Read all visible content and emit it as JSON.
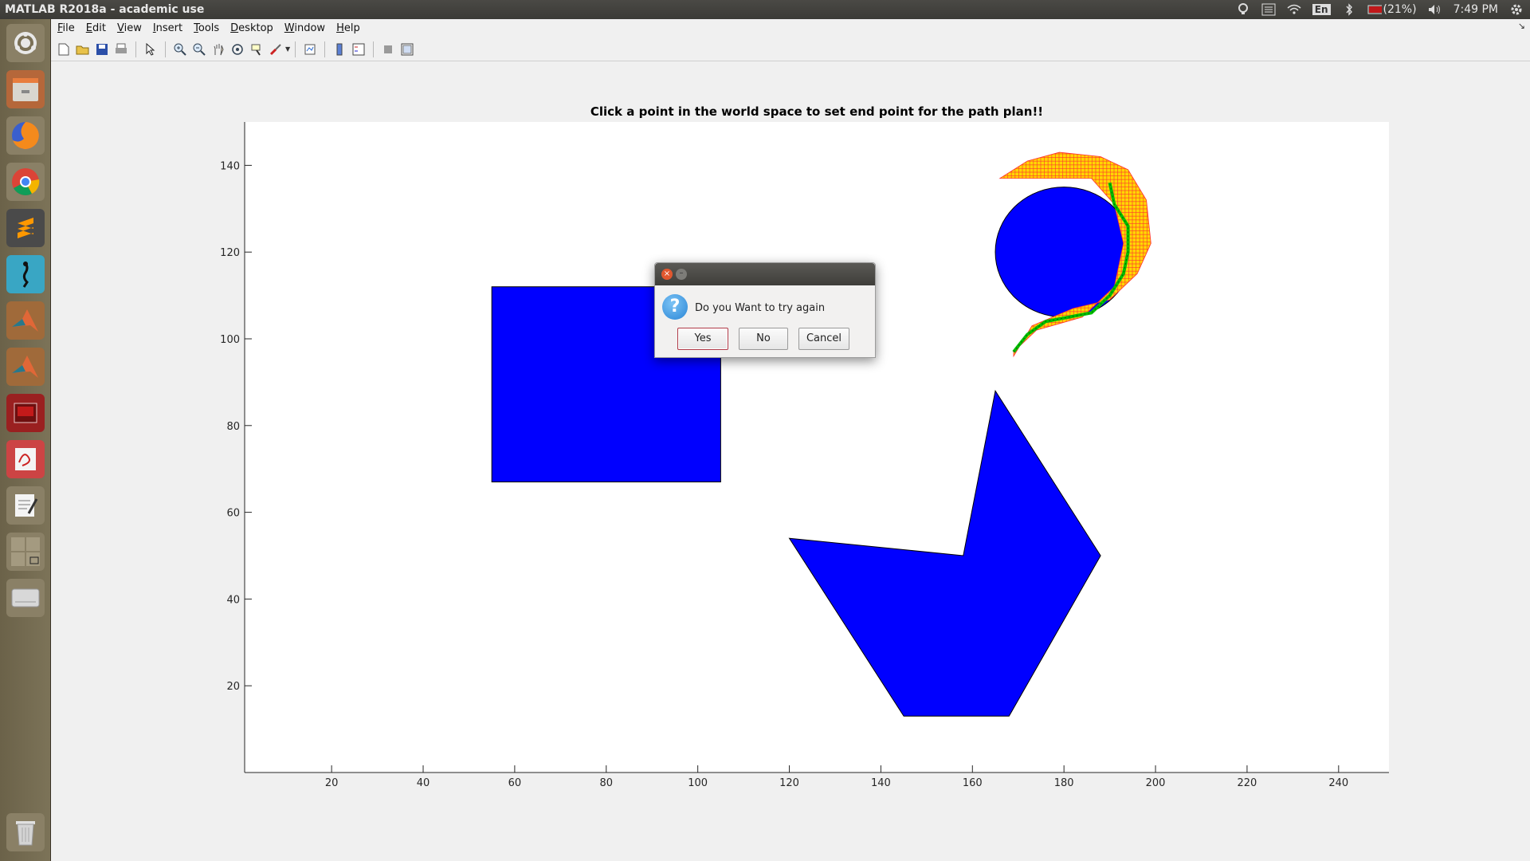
{
  "window": {
    "title": "MATLAB R2018a - academic use"
  },
  "tray": {
    "language": "En",
    "battery": "(21%)",
    "time": "7:49 PM"
  },
  "menu": [
    "File",
    "Edit",
    "View",
    "Insert",
    "Tools",
    "Desktop",
    "Window",
    "Help"
  ],
  "toolbar_icons": [
    "new-figure-icon",
    "open-icon",
    "save-icon",
    "print-icon",
    "edit-plot-icon",
    "zoom-in-icon",
    "zoom-out-icon",
    "pan-icon",
    "rotate-3d-icon",
    "data-cursor-icon",
    "brush-icon",
    "link-plot-icon",
    "insert-colorbar-icon",
    "insert-legend-icon",
    "hide-plot-tools-icon",
    "show-plot-tools-icon"
  ],
  "launcher_icons": [
    "dash-icon",
    "files-icon",
    "firefox-icon",
    "chrome-icon",
    "sublime-text-icon",
    "terminal-gecko-icon",
    "matlab-icon",
    "matlab-icon-2",
    "app-red-icon",
    "document-viewer-icon",
    "text-editor-icon",
    "workspace-switcher-icon",
    "drive-icon",
    "trash-icon"
  ],
  "colors": {
    "obstacle": "#0000ff",
    "path": "#00c000",
    "explored": "#ffd700",
    "explored_edge": "#ff3030"
  },
  "chart_data": {
    "type": "scatter",
    "title": "Click a point in the world space to set end point for the path plan!!",
    "xlabel": "",
    "ylabel": "",
    "xlim": [
      1,
      251
    ],
    "ylim": [
      0,
      150
    ],
    "xticks": [
      20,
      40,
      60,
      80,
      100,
      120,
      140,
      160,
      180,
      200,
      220,
      240
    ],
    "yticks": [
      20,
      40,
      60,
      80,
      100,
      120,
      140
    ],
    "obstacles": [
      {
        "shape": "rectangle",
        "x": [
          55,
          105
        ],
        "y": [
          67,
          112
        ]
      },
      {
        "shape": "circle",
        "center": [
          180,
          120
        ],
        "radius": 15
      },
      {
        "shape": "polygon",
        "points": [
          [
            165,
            88
          ],
          [
            188,
            50
          ],
          [
            168,
            13
          ],
          [
            145,
            13
          ],
          [
            120,
            54
          ],
          [
            158,
            50
          ]
        ]
      }
    ],
    "path": [
      [
        169,
        97
      ],
      [
        172,
        101
      ],
      [
        176,
        104
      ],
      [
        181,
        105
      ],
      [
        186,
        106
      ],
      [
        190,
        110
      ],
      [
        193,
        115
      ],
      [
        194,
        120
      ],
      [
        194,
        126
      ],
      [
        191,
        131
      ],
      [
        190,
        136
      ]
    ],
    "explored_region": [
      [
        169,
        96
      ],
      [
        173,
        103
      ],
      [
        182,
        107
      ],
      [
        190,
        109
      ],
      [
        196,
        115
      ],
      [
        199,
        122
      ],
      [
        198,
        132
      ],
      [
        194,
        139
      ],
      [
        188,
        142
      ],
      [
        179,
        143
      ],
      [
        172,
        141
      ],
      [
        166,
        137
      ],
      [
        175,
        137
      ],
      [
        186,
        137
      ],
      [
        191,
        131
      ],
      [
        193,
        122
      ],
      [
        191,
        112
      ],
      [
        184,
        105
      ],
      [
        174,
        102
      ],
      [
        169,
        97
      ]
    ]
  },
  "dialog": {
    "message": "Do you Want to try again",
    "yes": "Yes",
    "no": "No",
    "cancel": "Cancel"
  }
}
